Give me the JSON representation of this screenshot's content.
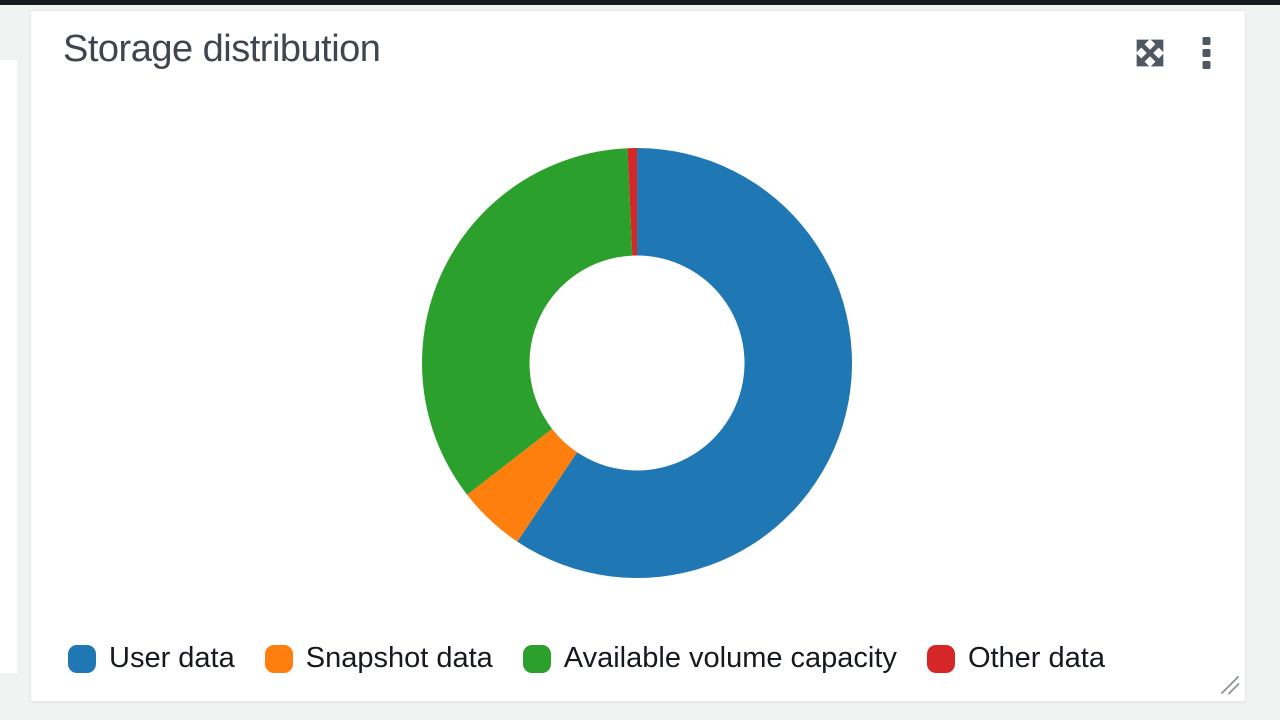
{
  "widget": {
    "title": "Storage distribution"
  },
  "chart_data": {
    "type": "pie",
    "subtype": "donut",
    "title": "Storage distribution",
    "categories": [
      "User data",
      "Snapshot data",
      "Available volume capacity",
      "Other data"
    ],
    "values": [
      59.4,
      5.1,
      34.8,
      0.7
    ],
    "unit": "percent-of-circle (estimated from arc angles)",
    "colors": [
      "#1f77b4",
      "#ff7f0e",
      "#2ca02c",
      "#d62728"
    ],
    "start_angle_deg": 0,
    "direction": "clockwise",
    "inner_radius_ratio": 0.5,
    "legend_position": "bottom",
    "data_labels": false
  },
  "legend": {
    "items": [
      {
        "label": "User data",
        "color": "#1f77b4"
      },
      {
        "label": "Snapshot data",
        "color": "#ff7f0e"
      },
      {
        "label": "Available volume capacity",
        "color": "#2ca02c"
      },
      {
        "label": "Other data",
        "color": "#d62728"
      }
    ]
  },
  "icons": {
    "expand": "expand-arrows-icon",
    "menu": "kebab-menu-icon",
    "resize": "resize-grip-icon"
  },
  "colors": {
    "icon": "#4f5861",
    "title_text": "#3f4650",
    "legend_text": "#16191f",
    "card_background": "#ffffff",
    "card_border": "#e7e9e9",
    "page_background": "#f1f2f2",
    "top_strip": "#161b22",
    "resize_grip": "#8a9298"
  }
}
